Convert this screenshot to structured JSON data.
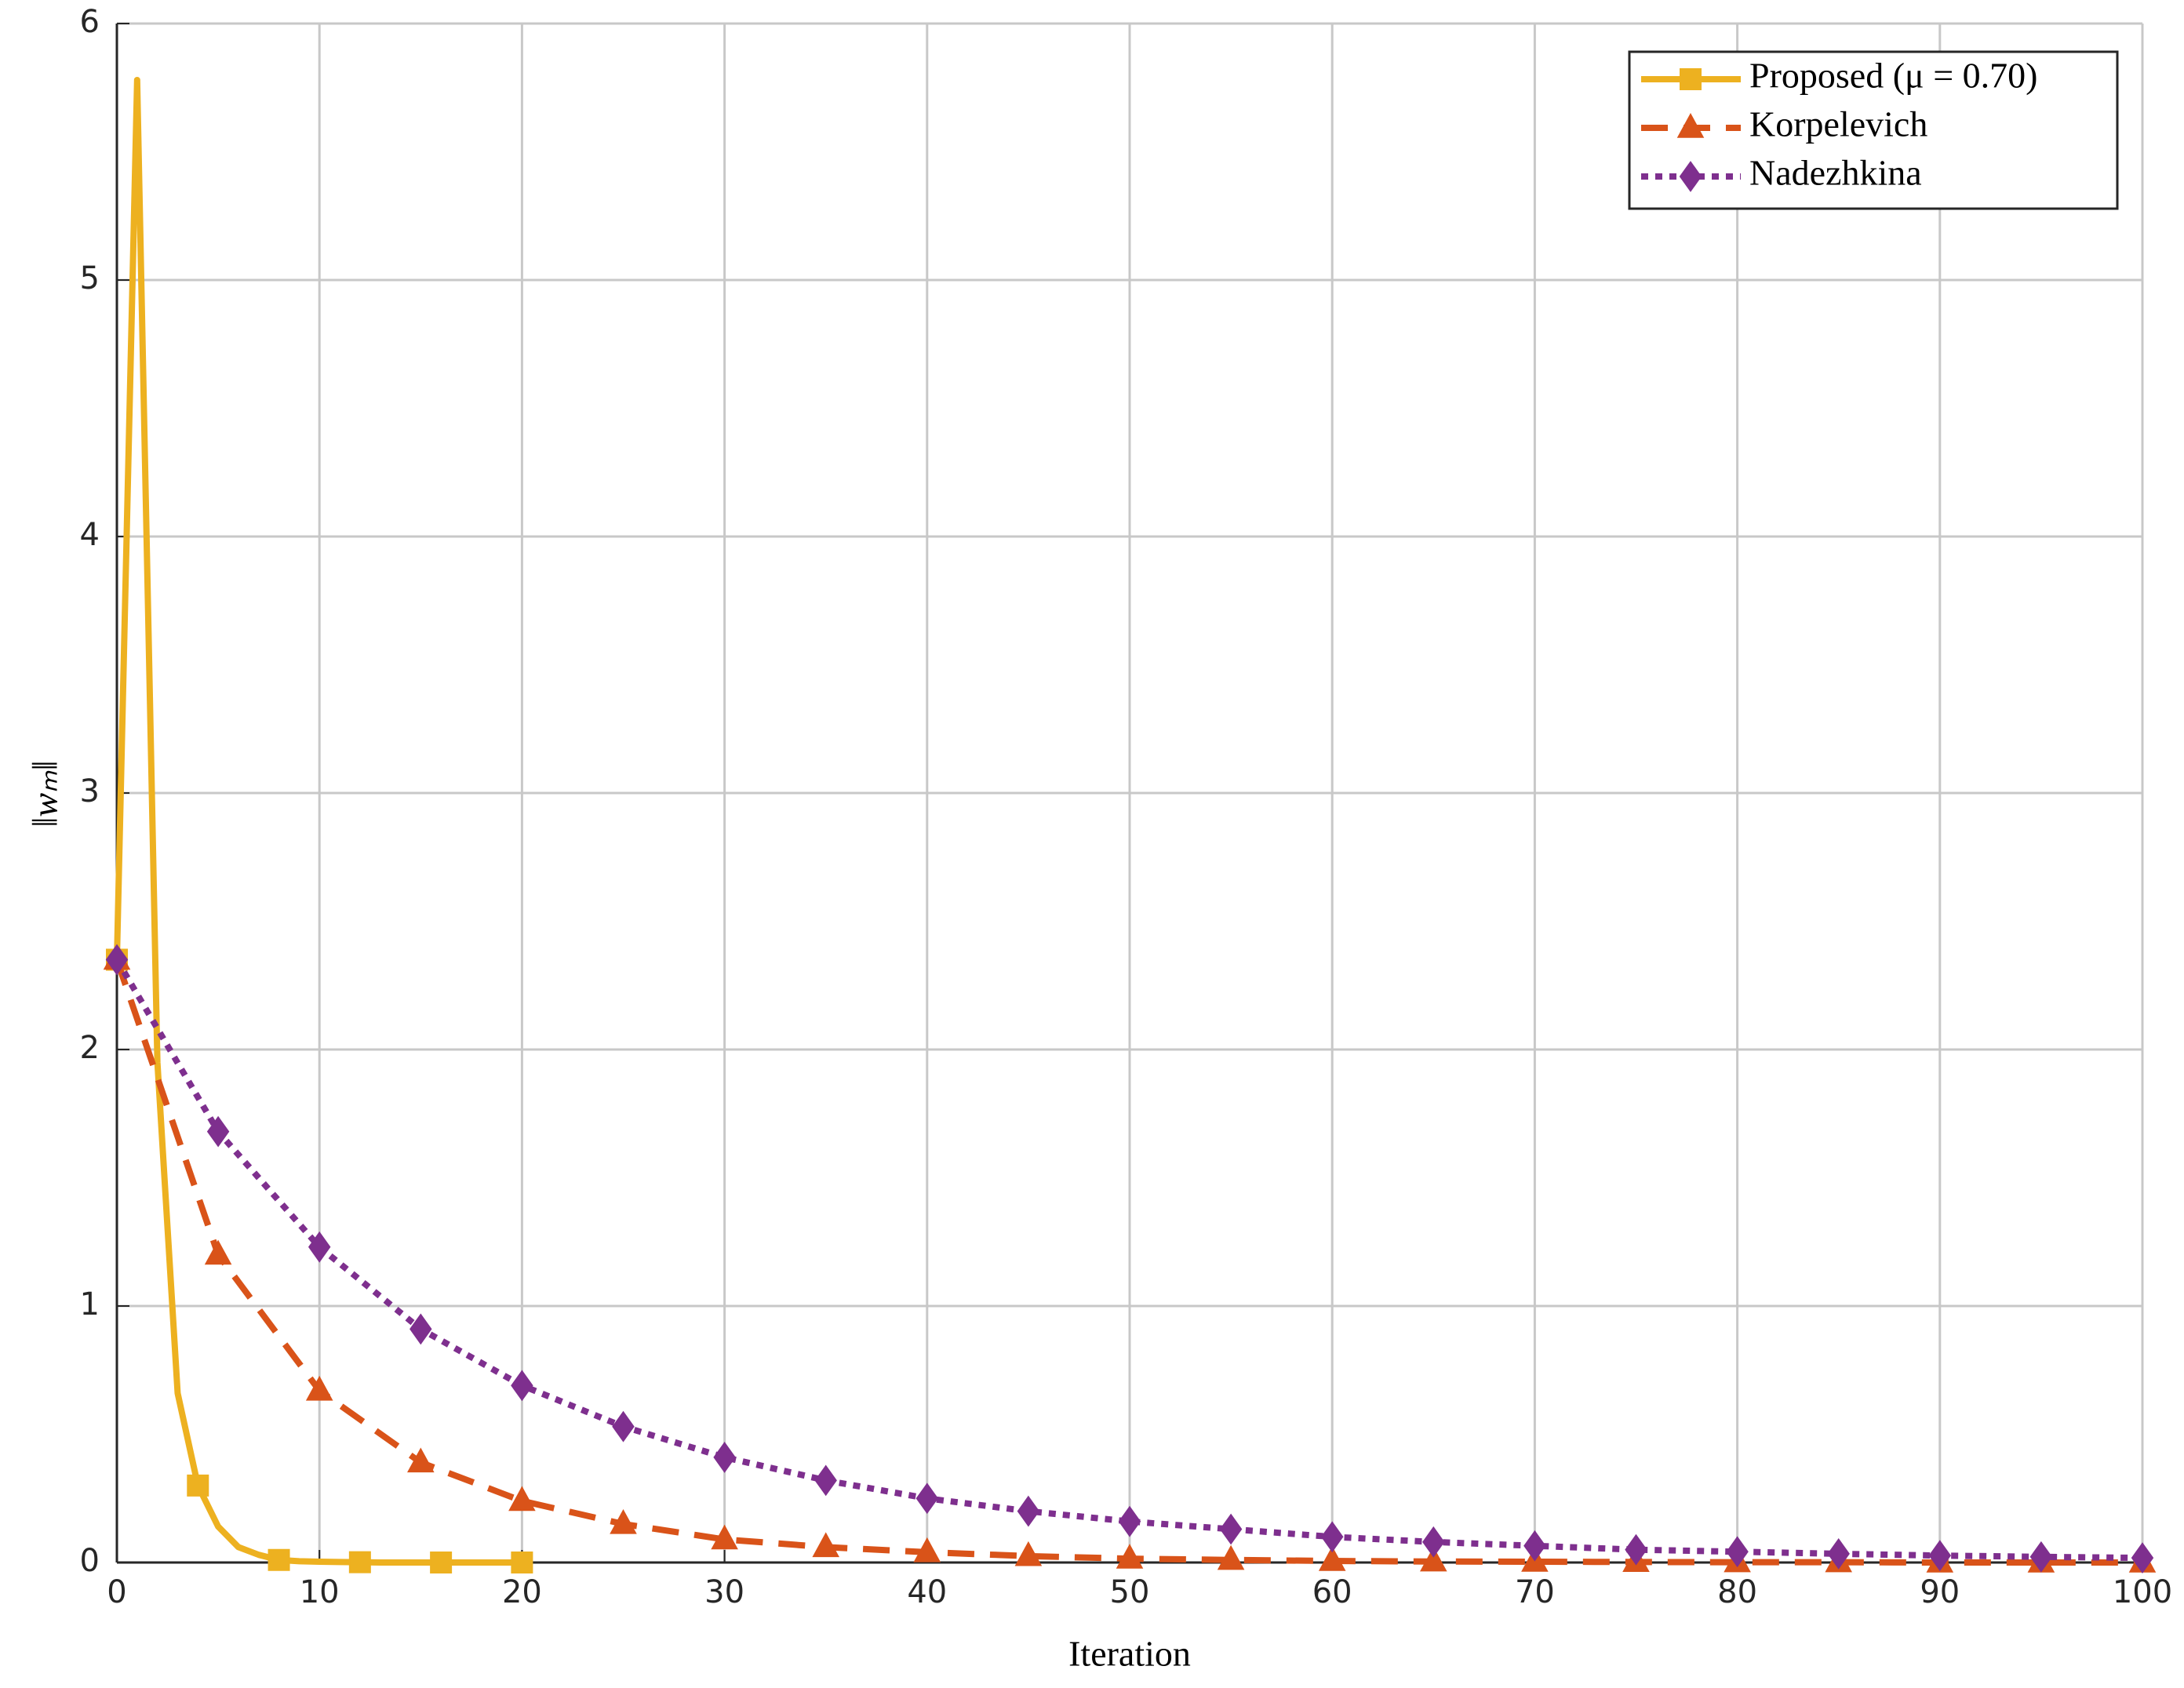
{
  "chart_data": {
    "type": "line",
    "xlabel": "Iteration",
    "ylabel": "‖wₘ‖",
    "xlim": [
      0,
      100
    ],
    "ylim": [
      0,
      6
    ],
    "xticks": [
      0,
      10,
      20,
      30,
      40,
      50,
      60,
      70,
      80,
      90,
      100
    ],
    "yticks": [
      0,
      1,
      2,
      3,
      4,
      5,
      6
    ],
    "grid": true,
    "legend": "upper right",
    "series": [
      {
        "name": "Proposed (μ = 0.70)",
        "color": "#EDB120",
        "linestyle": "solid",
        "marker": "square",
        "markevery": 4,
        "x": [
          0,
          1,
          2,
          3,
          4,
          5,
          6,
          7,
          8,
          9,
          10,
          11,
          12,
          13,
          14,
          15,
          16,
          17,
          18,
          19,
          20
        ],
        "values": [
          2.35,
          5.78,
          1.95,
          0.66,
          0.3,
          0.14,
          0.06,
          0.03,
          0.01,
          0.005,
          0.003,
          0.002,
          0.001,
          0,
          0,
          0,
          0,
          0,
          0,
          0,
          0
        ]
      },
      {
        "name": "Korpelevich",
        "color": "#D95319",
        "linestyle": "dashed",
        "marker": "triangle",
        "markevery": 1,
        "x": [
          0,
          5,
          10,
          15,
          20,
          25,
          30,
          35,
          40,
          45,
          50,
          55,
          60,
          65,
          70,
          75,
          80,
          85,
          90,
          95,
          100
        ],
        "values": [
          2.35,
          1.2,
          0.67,
          0.39,
          0.24,
          0.15,
          0.09,
          0.06,
          0.04,
          0.025,
          0.015,
          0.01,
          0.006,
          0.004,
          0.003,
          0.002,
          0.001,
          0.001,
          0,
          0,
          0
        ]
      },
      {
        "name": "Nadezhkina",
        "color": "#7E2F8E",
        "linestyle": "dotted",
        "marker": "diamond",
        "markevery": 1,
        "x": [
          0,
          5,
          10,
          15,
          20,
          25,
          30,
          35,
          40,
          45,
          50,
          55,
          60,
          65,
          70,
          75,
          80,
          85,
          90,
          95,
          100
        ],
        "values": [
          2.35,
          1.68,
          1.23,
          0.91,
          0.69,
          0.53,
          0.41,
          0.32,
          0.25,
          0.2,
          0.16,
          0.13,
          0.1,
          0.08,
          0.065,
          0.05,
          0.042,
          0.034,
          0.027,
          0.022,
          0.018
        ]
      }
    ]
  }
}
